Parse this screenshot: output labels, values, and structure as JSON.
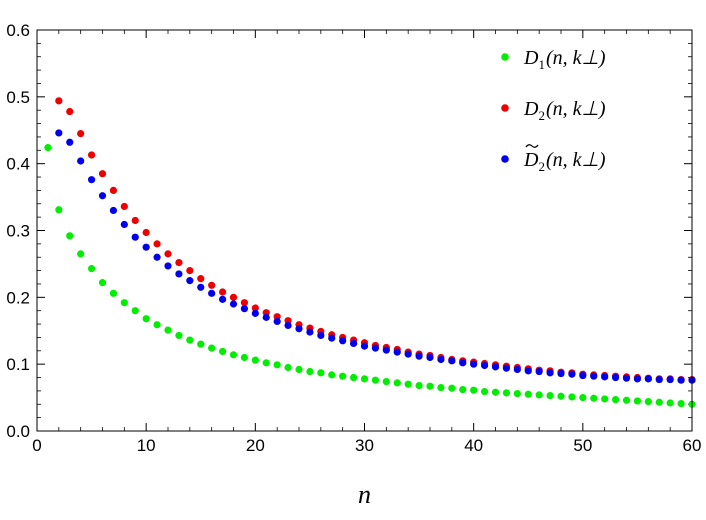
{
  "chart_data": {
    "type": "scatter",
    "title": "",
    "xlabel": "n",
    "ylabel": "",
    "xlim": [
      0,
      60
    ],
    "ylim": [
      0,
      0.6
    ],
    "xticks": [
      "0",
      "10",
      "20",
      "30",
      "40",
      "50",
      "60"
    ],
    "yticks": [
      "0.0",
      "0.1",
      "0.2",
      "0.3",
      "0.4",
      "0.5",
      "0.6"
    ],
    "grid": false,
    "legend_position": "top-right",
    "series": [
      {
        "name": "D₁(n, k⊥)",
        "legend_parts": {
          "letter": "D",
          "sub": "1",
          "args": "(n, k⊥)",
          "tilde": false
        },
        "color": "#00ee00",
        "x": [
          1,
          2,
          3,
          4,
          5,
          6,
          7,
          8,
          9,
          10,
          11,
          12,
          13,
          14,
          15,
          16,
          17,
          18,
          19,
          20,
          21,
          22,
          23,
          24,
          25,
          26,
          27,
          28,
          29,
          30,
          31,
          32,
          33,
          34,
          35,
          36,
          37,
          38,
          39,
          40,
          41,
          42,
          43,
          44,
          45,
          46,
          47,
          48,
          49,
          50,
          51,
          52,
          53,
          54,
          55,
          56,
          57,
          58,
          59,
          60
        ],
        "y": [
          0.424,
          0.331,
          0.292,
          0.265,
          0.243,
          0.222,
          0.206,
          0.192,
          0.18,
          0.168,
          0.159,
          0.151,
          0.143,
          0.136,
          0.13,
          0.124,
          0.119,
          0.114,
          0.11,
          0.106,
          0.102,
          0.099,
          0.095,
          0.092,
          0.089,
          0.087,
          0.084,
          0.082,
          0.08,
          0.078,
          0.076,
          0.074,
          0.072,
          0.07,
          0.068,
          0.067,
          0.065,
          0.064,
          0.062,
          0.061,
          0.059,
          0.058,
          0.057,
          0.056,
          0.055,
          0.054,
          0.053,
          0.052,
          0.051,
          0.05,
          0.049,
          0.048,
          0.047,
          0.046,
          0.045,
          0.044,
          0.043,
          0.042,
          0.041,
          0.04
        ]
      },
      {
        "name": "D₂(n, k⊥)",
        "legend_parts": {
          "letter": "D",
          "sub": "2",
          "args": "(n, k⊥)",
          "tilde": false
        },
        "color": "#ee0000",
        "x": [
          2,
          3,
          4,
          5,
          6,
          7,
          8,
          9,
          10,
          11,
          12,
          13,
          14,
          15,
          16,
          17,
          18,
          19,
          20,
          21,
          22,
          23,
          24,
          25,
          26,
          27,
          28,
          29,
          30,
          31,
          32,
          33,
          34,
          35,
          36,
          37,
          38,
          39,
          40,
          41,
          42,
          43,
          44,
          45,
          46,
          47,
          48,
          49,
          50,
          51,
          52,
          53,
          54,
          55,
          56,
          57,
          58,
          59,
          60
        ],
        "y": [
          0.494,
          0.478,
          0.445,
          0.413,
          0.385,
          0.36,
          0.336,
          0.315,
          0.297,
          0.28,
          0.265,
          0.252,
          0.24,
          0.228,
          0.218,
          0.208,
          0.2,
          0.192,
          0.184,
          0.177,
          0.171,
          0.165,
          0.159,
          0.154,
          0.149,
          0.144,
          0.14,
          0.136,
          0.132,
          0.128,
          0.125,
          0.122,
          0.118,
          0.115,
          0.113,
          0.11,
          0.107,
          0.105,
          0.103,
          0.101,
          0.099,
          0.097,
          0.095,
          0.093,
          0.091,
          0.09,
          0.088,
          0.087,
          0.085,
          0.084,
          0.083,
          0.082,
          0.081,
          0.08,
          0.079,
          0.078,
          0.078,
          0.077,
          0.077
        ]
      },
      {
        "name": "D̃₂(n, k⊥)",
        "legend_parts": {
          "letter": "D",
          "sub": "2",
          "args": "(n, k⊥)",
          "tilde": true
        },
        "color": "#0000ee",
        "x": [
          2,
          3,
          4,
          5,
          6,
          7,
          8,
          9,
          10,
          11,
          12,
          13,
          14,
          15,
          16,
          17,
          18,
          19,
          20,
          21,
          22,
          23,
          24,
          25,
          26,
          27,
          28,
          29,
          30,
          31,
          32,
          33,
          34,
          35,
          36,
          37,
          38,
          39,
          40,
          41,
          42,
          43,
          44,
          45,
          46,
          47,
          48,
          49,
          50,
          51,
          52,
          53,
          54,
          55,
          56,
          57,
          58,
          59,
          60
        ],
        "y": [
          0.446,
          0.432,
          0.404,
          0.376,
          0.352,
          0.33,
          0.309,
          0.29,
          0.275,
          0.26,
          0.247,
          0.235,
          0.225,
          0.215,
          0.206,
          0.197,
          0.19,
          0.183,
          0.176,
          0.17,
          0.164,
          0.158,
          0.153,
          0.148,
          0.143,
          0.139,
          0.135,
          0.131,
          0.127,
          0.124,
          0.121,
          0.118,
          0.115,
          0.112,
          0.11,
          0.107,
          0.105,
          0.102,
          0.1,
          0.098,
          0.096,
          0.094,
          0.092,
          0.09,
          0.089,
          0.087,
          0.086,
          0.085,
          0.083,
          0.082,
          0.081,
          0.08,
          0.079,
          0.078,
          0.078,
          0.077,
          0.077,
          0.076,
          0.076
        ]
      }
    ]
  }
}
